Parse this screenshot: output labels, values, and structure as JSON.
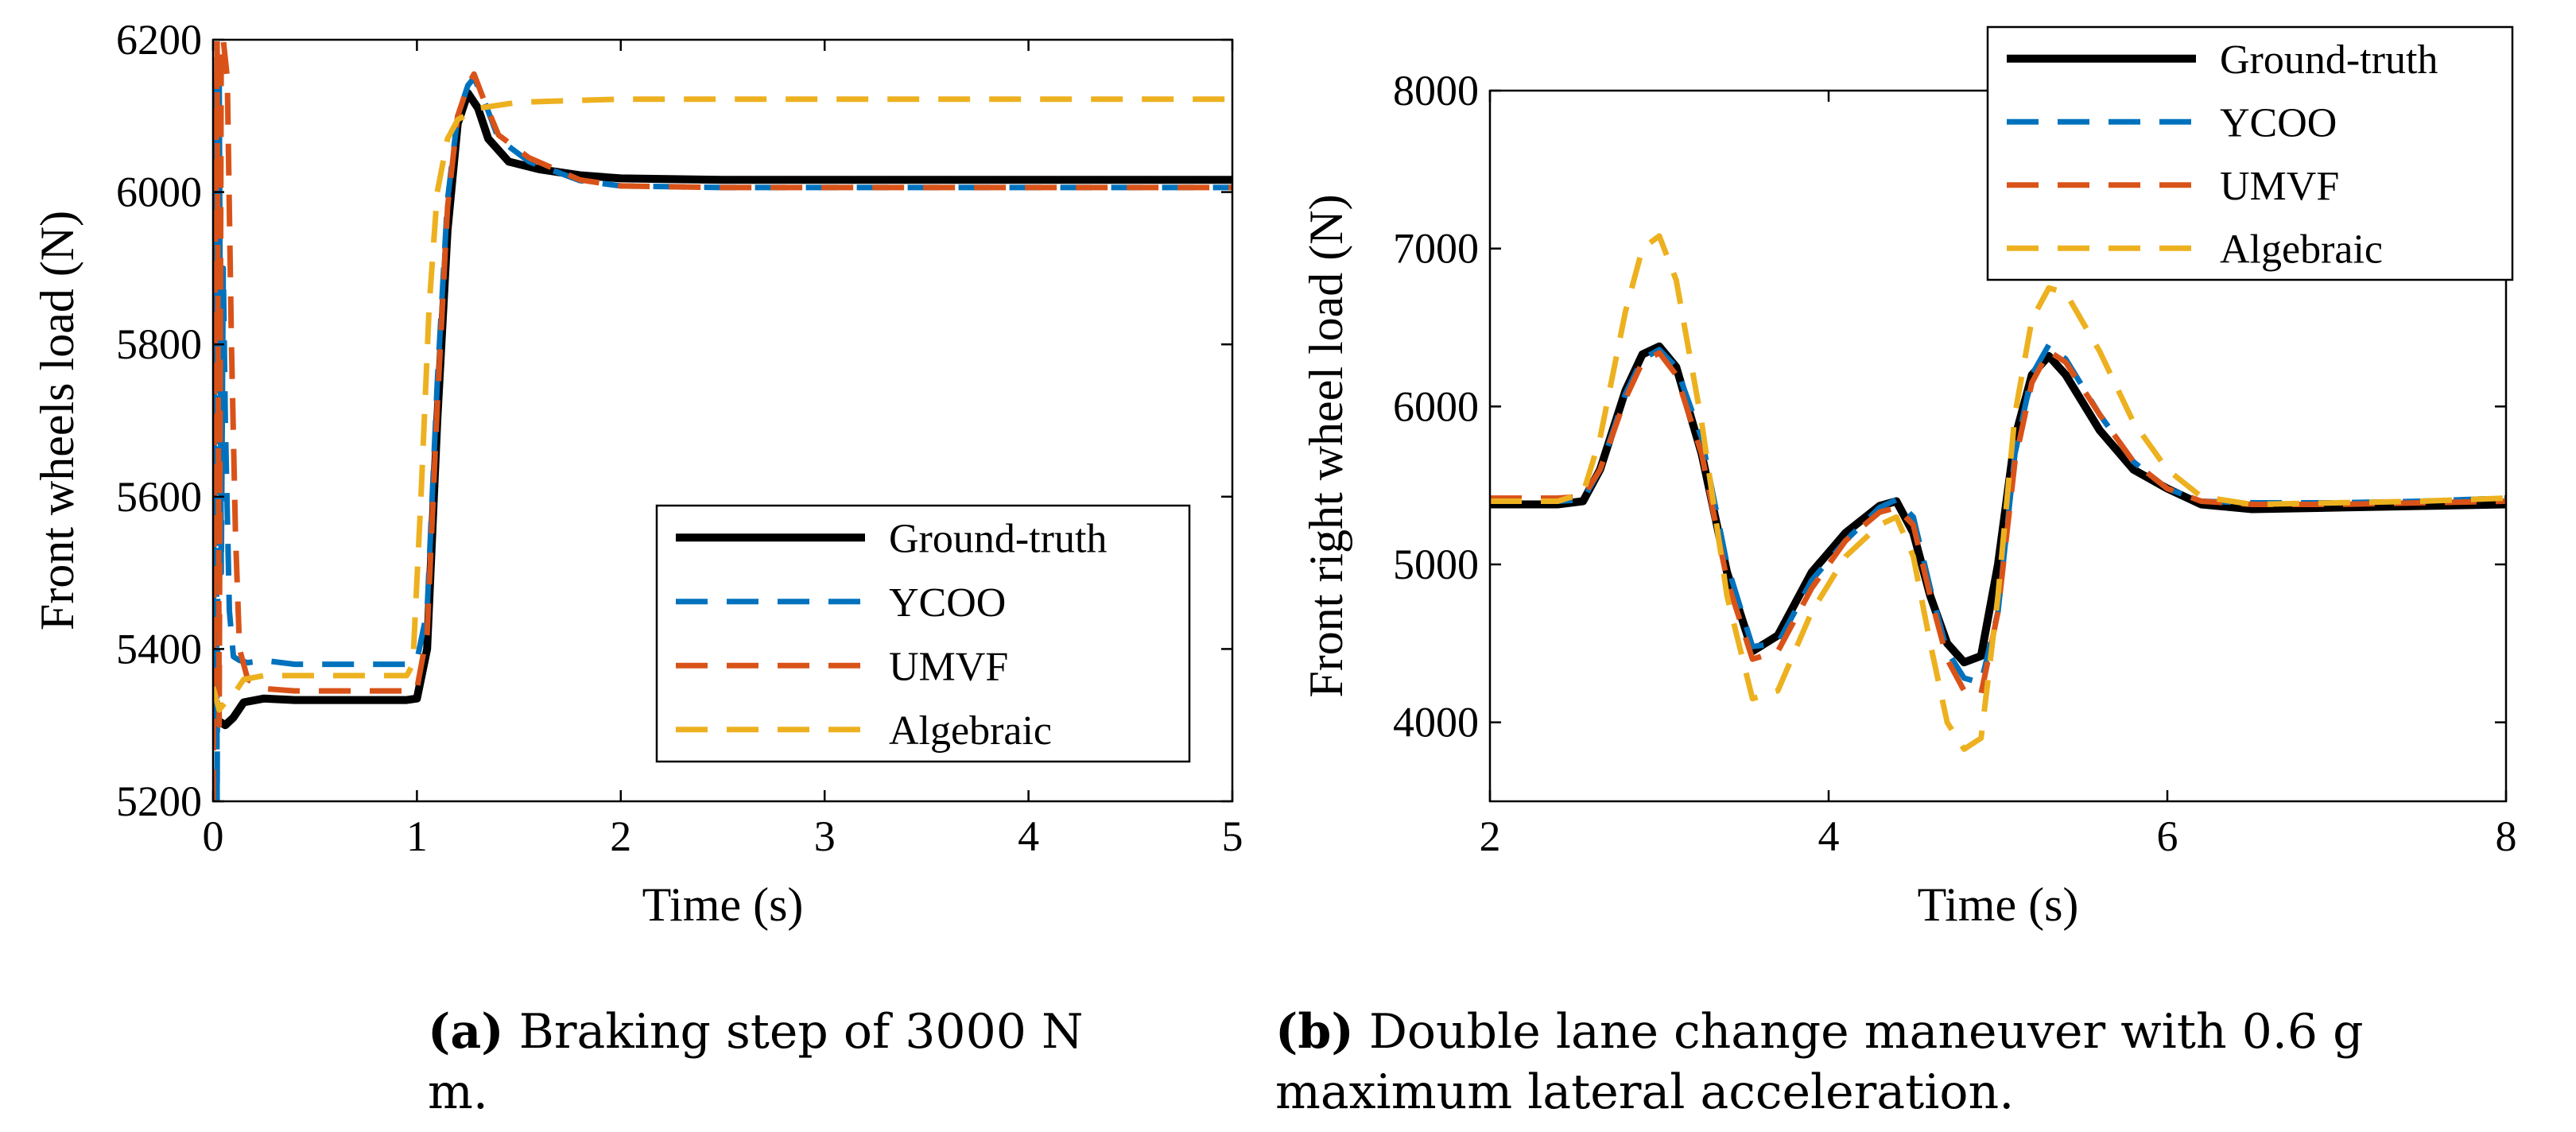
{
  "colors": {
    "ground_truth": "#000000",
    "ycoo": "#0072BD",
    "umvf": "#D95319",
    "algebraic": "#EDB120"
  },
  "captions": {
    "a_tag": "(a)",
    "a_text": "Braking step of 3000 N m.",
    "b_tag": "(b)",
    "b_text": "Double lane change maneuver with 0.6 g maximum lateral acceleration."
  },
  "chart_data": [
    {
      "type": "line",
      "xlabel": "Time (s)",
      "ylabel": "Front wheels load (N)",
      "xlim": [
        0,
        5
      ],
      "ylim": [
        5200,
        6200
      ],
      "xticks": [
        0,
        1,
        2,
        3,
        4,
        5
      ],
      "yticks": [
        5200,
        5400,
        5600,
        5800,
        6000,
        6200
      ],
      "legend_position": "bottom-right",
      "grid": false,
      "series": [
        {
          "name": "Ground-truth",
          "style": "solid",
          "x": [
            0,
            0.03,
            0.06,
            0.1,
            0.15,
            0.25,
            0.4,
            0.6,
            0.8,
            0.95,
            1.0,
            1.05,
            1.1,
            1.15,
            1.2,
            1.25,
            1.3,
            1.35,
            1.45,
            1.6,
            1.8,
            2.0,
            2.5,
            3.0,
            4.0,
            5.0
          ],
          "y": [
            5310,
            5305,
            5300,
            5310,
            5330,
            5335,
            5333,
            5333,
            5333,
            5333,
            5335,
            5400,
            5700,
            5950,
            6090,
            6130,
            6110,
            6070,
            6040,
            6030,
            6022,
            6018,
            6016,
            6016,
            6016,
            6016
          ]
        },
        {
          "name": "YCOO",
          "style": "dashed",
          "x": [
            0,
            0.01,
            0.02,
            0.03,
            0.04,
            0.05,
            0.06,
            0.08,
            0.1,
            0.13,
            0.17,
            0.25,
            0.4,
            0.6,
            0.8,
            0.95,
            1.0,
            1.05,
            1.1,
            1.15,
            1.2,
            1.25,
            1.28,
            1.33,
            1.4,
            1.55,
            1.8,
            2.0,
            2.5,
            3.0,
            4.0,
            5.0
          ],
          "y": [
            5300,
            6140,
            5200,
            6150,
            5500,
            5900,
            5700,
            5450,
            5390,
            5385,
            5382,
            5385,
            5380,
            5380,
            5380,
            5380,
            5385,
            5450,
            5750,
            5990,
            6100,
            6140,
            6150,
            6120,
            6070,
            6040,
            6015,
            6008,
            6006,
            6006,
            6006,
            6006
          ]
        },
        {
          "name": "UMVF",
          "style": "dashed",
          "x": [
            0,
            0.01,
            0.02,
            0.03,
            0.04,
            0.05,
            0.07,
            0.09,
            0.11,
            0.13,
            0.17,
            0.25,
            0.4,
            0.6,
            0.8,
            0.95,
            1.0,
            1.05,
            1.1,
            1.15,
            1.2,
            1.25,
            1.28,
            1.33,
            1.4,
            1.55,
            1.8,
            2.0,
            2.5,
            3.0,
            4.0,
            5.0
          ],
          "y": [
            5200,
            5900,
            6200,
            5300,
            6200,
            6200,
            6150,
            5800,
            5550,
            5400,
            5360,
            5348,
            5345,
            5345,
            5345,
            5345,
            5348,
            5420,
            5720,
            5980,
            6100,
            6140,
            6155,
            6120,
            6075,
            6045,
            6016,
            6008,
            6006,
            6006,
            6006,
            6006
          ]
        },
        {
          "name": "Algebraic",
          "style": "dashed",
          "x": [
            0,
            0.03,
            0.06,
            0.1,
            0.15,
            0.25,
            0.4,
            0.6,
            0.8,
            0.95,
            0.98,
            1.02,
            1.06,
            1.1,
            1.15,
            1.2,
            1.3,
            1.5,
            2.0,
            3.0,
            4.0,
            5.0
          ],
          "y": [
            5350,
            5320,
            5330,
            5340,
            5360,
            5365,
            5365,
            5365,
            5365,
            5365,
            5380,
            5600,
            5850,
            6000,
            6070,
            6095,
            6110,
            6118,
            6122,
            6122,
            6122,
            6122
          ]
        }
      ]
    },
    {
      "type": "line",
      "xlabel": "Time (s)",
      "ylabel": "Front right wheel load (N)",
      "xlim": [
        2,
        8
      ],
      "ylim": [
        3500,
        8000
      ],
      "xticks": [
        2,
        4,
        6,
        8
      ],
      "yticks": [
        4000,
        5000,
        6000,
        7000,
        8000
      ],
      "legend_position": "top-right",
      "grid": false,
      "series": [
        {
          "name": "Ground-truth",
          "style": "solid",
          "x": [
            2,
            2.4,
            2.55,
            2.65,
            2.8,
            2.9,
            3.0,
            3.1,
            3.25,
            3.4,
            3.55,
            3.7,
            3.9,
            4.1,
            4.3,
            4.4,
            4.5,
            4.6,
            4.7,
            4.8,
            4.9,
            5.0,
            5.1,
            5.2,
            5.3,
            5.4,
            5.6,
            5.8,
            6.0,
            6.2,
            6.5,
            7.0,
            7.5,
            8.0
          ],
          "y": [
            5380,
            5380,
            5400,
            5600,
            6100,
            6330,
            6380,
            6250,
            5700,
            4950,
            4450,
            4550,
            4950,
            5200,
            5370,
            5400,
            5200,
            4800,
            4500,
            4380,
            4420,
            5000,
            5800,
            6200,
            6320,
            6200,
            5850,
            5600,
            5480,
            5380,
            5350,
            5360,
            5370,
            5380
          ]
        },
        {
          "name": "YCOO",
          "style": "dashed",
          "x": [
            2,
            2.4,
            2.55,
            2.65,
            2.8,
            2.9,
            3.0,
            3.1,
            3.25,
            3.4,
            3.55,
            3.7,
            3.9,
            4.1,
            4.3,
            4.4,
            4.5,
            4.6,
            4.7,
            4.8,
            4.9,
            5.0,
            5.1,
            5.2,
            5.3,
            5.4,
            5.6,
            5.8,
            6.0,
            6.2,
            6.5,
            7.0,
            7.5,
            8.0
          ],
          "y": [
            5400,
            5400,
            5410,
            5600,
            6080,
            6300,
            6360,
            6250,
            5800,
            5000,
            4480,
            4500,
            4900,
            5150,
            5360,
            5410,
            5300,
            4850,
            4450,
            4280,
            4250,
            4700,
            5700,
            6200,
            6390,
            6300,
            5950,
            5650,
            5480,
            5400,
            5390,
            5390,
            5400,
            5420
          ]
        },
        {
          "name": "UMVF",
          "style": "dashed",
          "x": [
            2,
            2.4,
            2.55,
            2.65,
            2.8,
            2.9,
            3.0,
            3.1,
            3.25,
            3.4,
            3.55,
            3.7,
            3.9,
            4.1,
            4.3,
            4.4,
            4.5,
            4.6,
            4.7,
            4.8,
            4.9,
            5.0,
            5.1,
            5.2,
            5.3,
            5.4,
            5.6,
            5.8,
            6.0,
            6.2,
            6.5,
            7.0,
            7.5,
            8.0
          ],
          "y": [
            5420,
            5420,
            5430,
            5600,
            6050,
            6280,
            6340,
            6200,
            5700,
            4900,
            4400,
            4450,
            4850,
            5150,
            5330,
            5360,
            5250,
            4800,
            4400,
            4200,
            4180,
            4700,
            5650,
            6150,
            6350,
            6280,
            5950,
            5650,
            5480,
            5400,
            5380,
            5380,
            5390,
            5400
          ]
        },
        {
          "name": "Algebraic",
          "style": "dashed",
          "x": [
            2,
            2.4,
            2.55,
            2.65,
            2.8,
            2.9,
            3.0,
            3.1,
            3.25,
            3.4,
            3.55,
            3.7,
            3.9,
            4.1,
            4.3,
            4.4,
            4.5,
            4.6,
            4.7,
            4.8,
            4.9,
            5.0,
            5.1,
            5.2,
            5.3,
            5.4,
            5.6,
            5.8,
            6.0,
            6.2,
            6.5,
            7.0,
            7.5,
            8.0
          ],
          "y": [
            5400,
            5400,
            5450,
            5800,
            6600,
            7000,
            7080,
            6800,
            5900,
            4800,
            4150,
            4200,
            4700,
            5050,
            5250,
            5300,
            5050,
            4500,
            4000,
            3830,
            3900,
            4800,
            5950,
            6550,
            6750,
            6720,
            6350,
            5900,
            5600,
            5430,
            5380,
            5390,
            5400,
            5420
          ]
        }
      ]
    }
  ]
}
